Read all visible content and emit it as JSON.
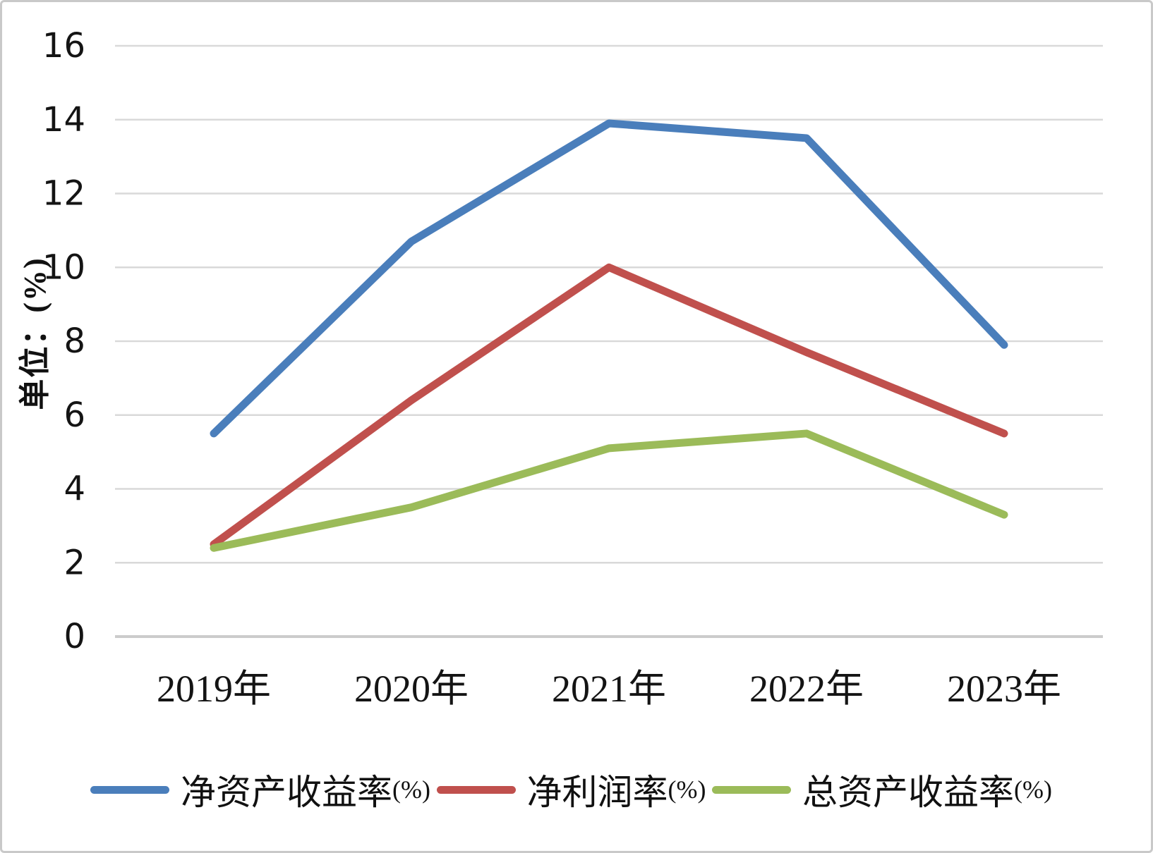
{
  "chart_data": {
    "type": "line",
    "title": "",
    "ylabel": "单位：(%)",
    "xlabel": "",
    "categories": [
      "2019年",
      "2020年",
      "2021年",
      "2022年",
      "2023年"
    ],
    "series": [
      {
        "name": "净资产收益率",
        "suffix": "(%)",
        "color": "#4A7EBB",
        "values": [
          5.5,
          10.7,
          13.9,
          13.5,
          7.9
        ]
      },
      {
        "name": "净利润率",
        "suffix": "(%)",
        "color": "#C0504D",
        "values": [
          2.5,
          6.4,
          10,
          7.7,
          5.5
        ]
      },
      {
        "name": "总资产收益率",
        "suffix": "(%)",
        "color": "#9BBB59",
        "values": [
          2.4,
          3.5,
          5.1,
          5.5,
          3.3
        ]
      }
    ],
    "ylim": [
      0,
      16
    ],
    "yticks": [
      0,
      2,
      4,
      6,
      8,
      10,
      12,
      14,
      16
    ],
    "grid": true,
    "legend_position": "bottom",
    "gridline_color": "#D9D9D9",
    "axis_line_color": "#CCCCCC",
    "text_color": "#141414"
  }
}
